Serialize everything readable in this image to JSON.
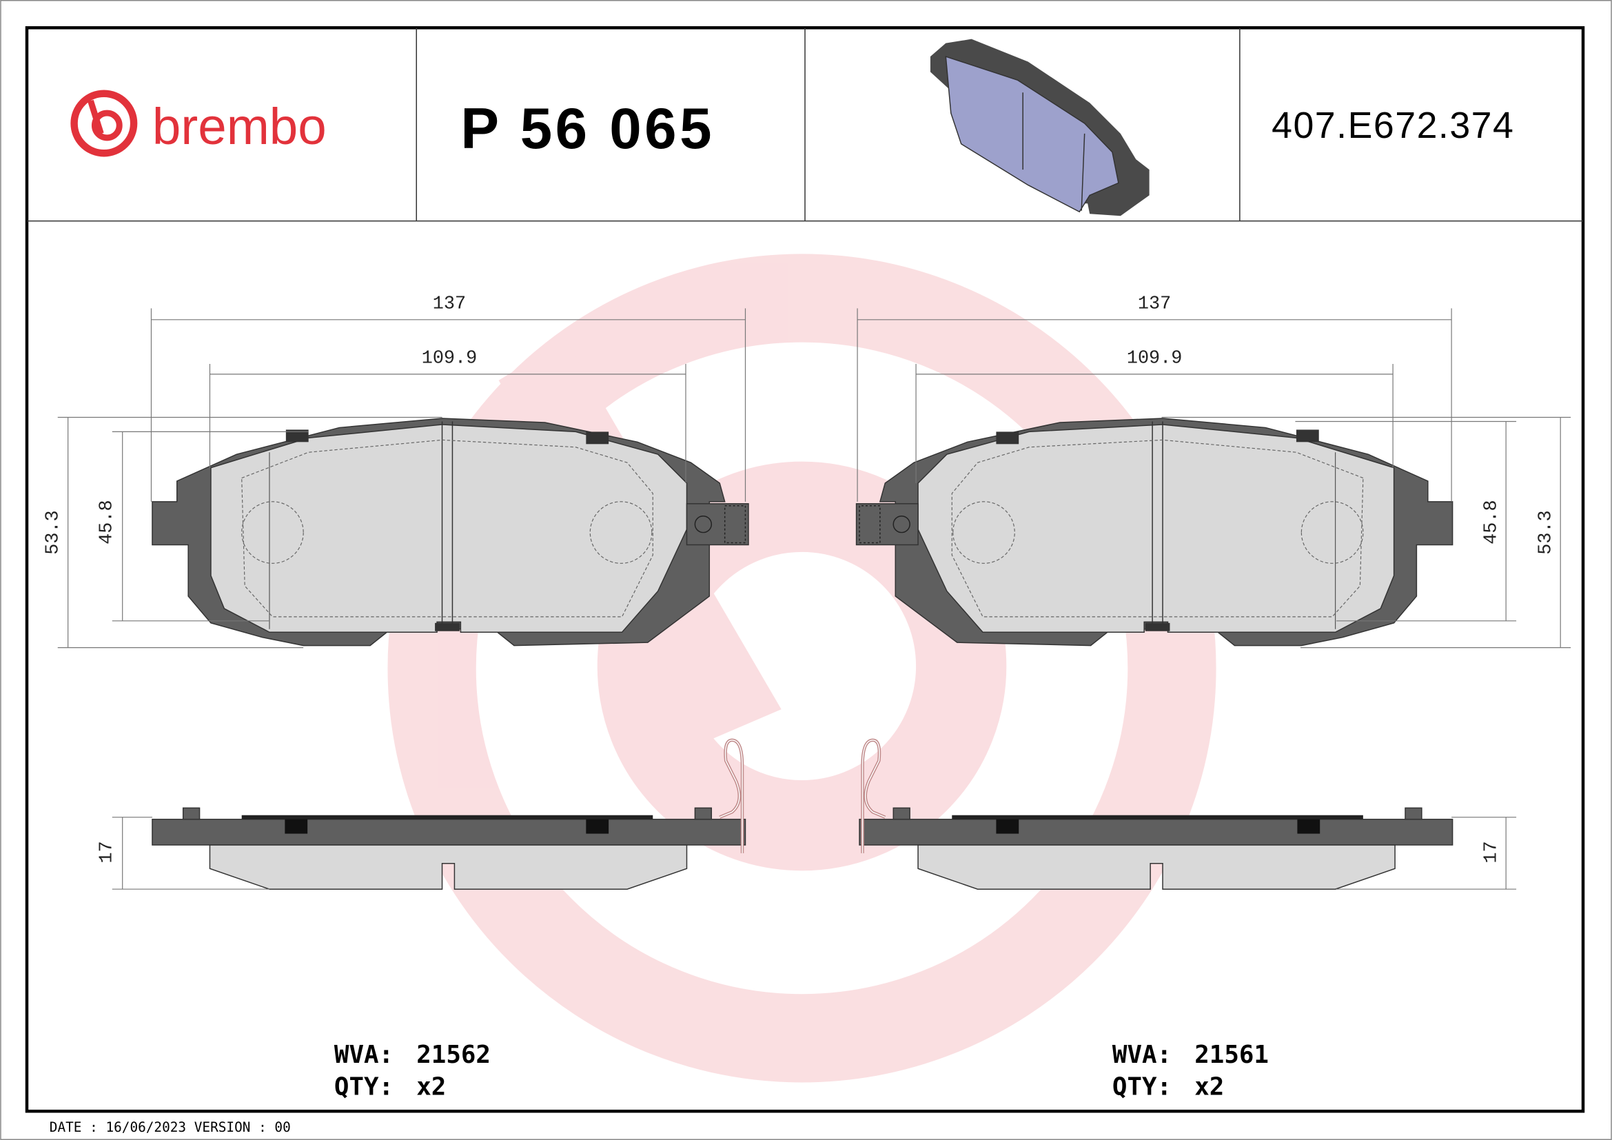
{
  "header": {
    "brand": "brembo",
    "part_number": "P 56 065",
    "reference": "407.E672.374"
  },
  "colors": {
    "brand_red": "#e2323b",
    "plate": "#5f5f5f",
    "friction": "#d9d9d9",
    "pad_3d": "#9da1cc",
    "watermark": "#f4b8bd"
  },
  "left_pad": {
    "width_overall": "137",
    "width_friction": "109.9",
    "height_overall": "53.3",
    "height_friction": "45.8",
    "thickness": "17",
    "wva_label": "WVA:",
    "wva": "21562",
    "qty_label": "QTY:",
    "qty": "x2"
  },
  "right_pad": {
    "width_overall": "137",
    "width_friction": "109.9",
    "height_overall": "53.3",
    "height_friction": "45.8",
    "thickness": "17",
    "wva_label": "WVA:",
    "wva": "21561",
    "qty_label": "QTY:",
    "qty": "x2"
  },
  "footer": {
    "text": "DATE : 16/06/2023 VERSION : 00"
  }
}
